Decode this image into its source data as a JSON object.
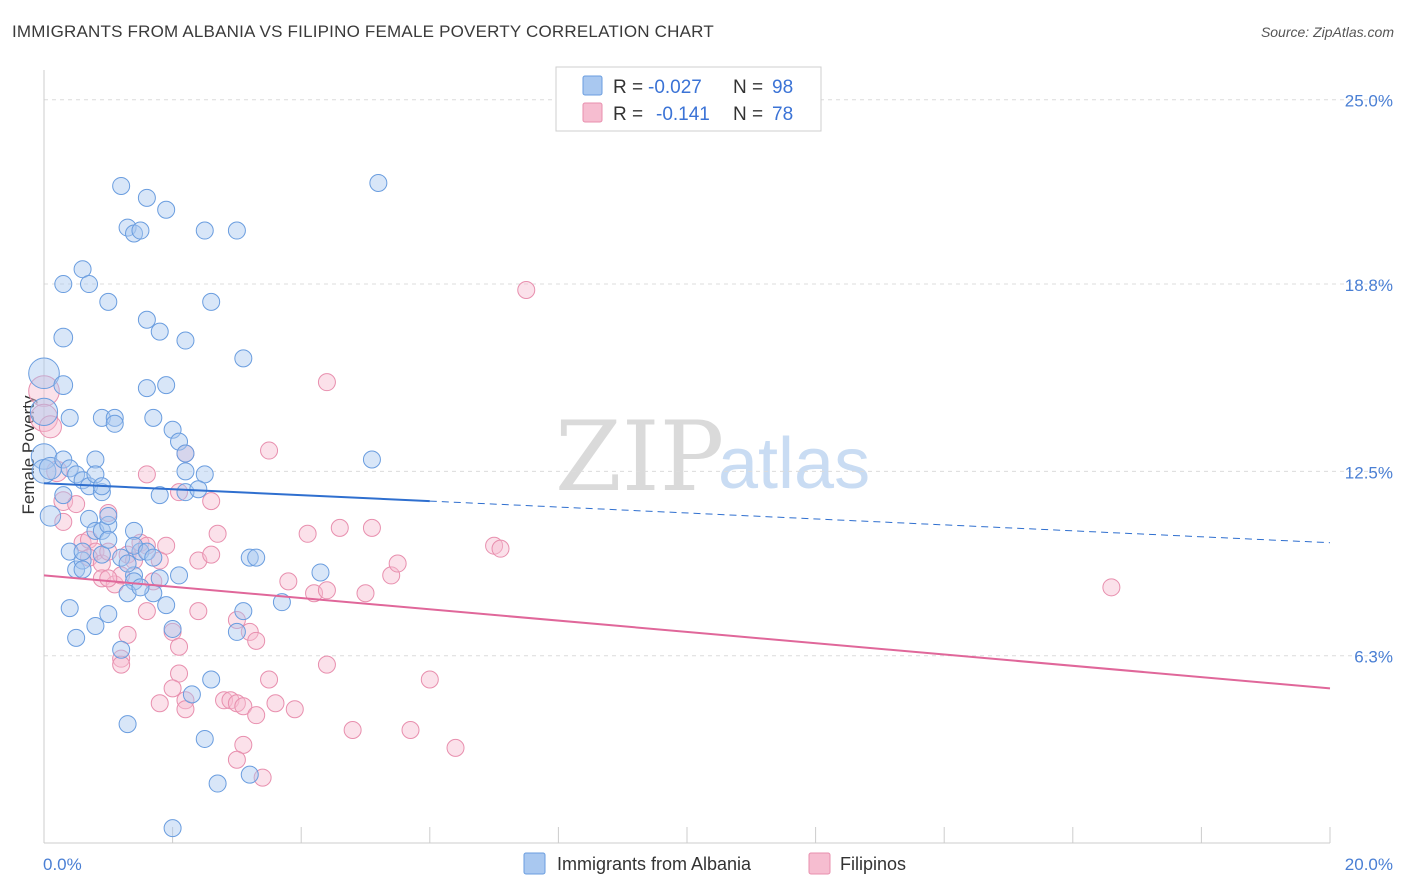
{
  "title": "IMMIGRANTS FROM ALBANIA VS FILIPINO FEMALE POVERTY CORRELATION CHART",
  "source": "Source: ZipAtlas.com",
  "watermark": {
    "part1": "ZIP",
    "part2": "atlas"
  },
  "colors": {
    "blue_fill": "#a9c8f0",
    "blue_stroke": "#6a9ddf",
    "blue_line": "#2f6fcf",
    "pink_fill": "#f6bdd0",
    "pink_stroke": "#e88fae",
    "pink_line": "#e0679a",
    "axis_text": "#4a7fd4",
    "grid": "#dcdcdc"
  },
  "legend": {
    "rows": [
      {
        "r_label": "R =",
        "r_value": "-0.027",
        "n_label": "N =",
        "n_value": "98",
        "series": "blue"
      },
      {
        "r_label": "R =",
        "r_value": "-0.141",
        "n_label": "N =",
        "n_value": "78",
        "series": "pink"
      }
    ]
  },
  "chart_data": {
    "type": "scatter",
    "title": "IMMIGRANTS FROM ALBANIA VS FILIPINO FEMALE POVERTY CORRELATION CHART",
    "xlabel": "",
    "ylabel": "Female Poverty",
    "xlim": [
      0,
      20
    ],
    "ylim": [
      0,
      26
    ],
    "x_tick_labels": [
      "0.0%",
      "20.0%"
    ],
    "y_ticks": [
      6.3,
      12.5,
      18.8,
      25.0
    ],
    "y_tick_labels": [
      "6.3%",
      "12.5%",
      "18.8%",
      "25.0%"
    ],
    "grid": true,
    "legend_position": "bottom-center",
    "series": [
      {
        "name": "Immigrants from Albania",
        "color": "blue",
        "trend": {
          "x_start": 0.0,
          "y_start": 12.1,
          "x_solid_end": 6.0,
          "y_solid_end": 11.5,
          "x_end": 20.0,
          "y_end": 10.1
        },
        "points": [
          [
            0.0,
            15.8,
            1.8
          ],
          [
            0.0,
            14.5,
            1.6
          ],
          [
            0.0,
            13.0,
            1.5
          ],
          [
            0.0,
            12.5,
            1.4
          ],
          [
            0.1,
            12.6,
            1.3
          ],
          [
            0.1,
            11.0,
            1.2
          ],
          [
            0.3,
            15.4,
            1.1
          ],
          [
            0.3,
            17.0,
            1.1
          ],
          [
            0.3,
            18.8,
            1.0
          ],
          [
            0.4,
            14.3,
            1.0
          ],
          [
            0.3,
            12.9,
            1.0
          ],
          [
            0.4,
            12.6,
            1.0
          ],
          [
            0.3,
            11.7,
            1.0
          ],
          [
            0.5,
            12.4,
            1.0
          ],
          [
            0.4,
            9.8,
            1.0
          ],
          [
            0.5,
            9.2,
            1.0
          ],
          [
            0.6,
            9.5,
            1.0
          ],
          [
            0.6,
            9.8,
            1.0
          ],
          [
            0.4,
            7.9,
            1.0
          ],
          [
            0.5,
            6.9,
            1.0
          ],
          [
            0.6,
            19.3,
            1.0
          ],
          [
            0.7,
            18.8,
            1.0
          ],
          [
            0.6,
            12.2,
            1.0
          ],
          [
            0.7,
            12.0,
            1.0
          ],
          [
            0.7,
            10.9,
            1.0
          ],
          [
            0.8,
            10.5,
            1.0
          ],
          [
            0.8,
            12.9,
            1.0
          ],
          [
            0.9,
            11.8,
            1.0
          ],
          [
            0.8,
            12.4,
            1.0
          ],
          [
            0.9,
            14.3,
            1.0
          ],
          [
            0.9,
            10.5,
            1.0
          ],
          [
            1.0,
            10.7,
            1.0
          ],
          [
            1.0,
            11.0,
            1.0
          ],
          [
            1.1,
            14.3,
            1.0
          ],
          [
            1.1,
            14.1,
            1.0
          ],
          [
            1.0,
            7.7,
            1.0
          ],
          [
            0.8,
            7.3,
            1.0
          ],
          [
            0.9,
            9.7,
            1.0
          ],
          [
            1.0,
            18.2,
            1.0
          ],
          [
            1.2,
            22.1,
            1.0
          ],
          [
            1.3,
            20.7,
            1.0
          ],
          [
            1.4,
            20.5,
            1.0
          ],
          [
            1.5,
            20.6,
            1.0
          ],
          [
            1.6,
            21.7,
            1.0
          ],
          [
            1.9,
            21.3,
            1.0
          ],
          [
            1.6,
            17.6,
            1.0
          ],
          [
            1.8,
            17.2,
            1.0
          ],
          [
            1.6,
            15.3,
            1.0
          ],
          [
            1.9,
            15.4,
            1.0
          ],
          [
            1.7,
            14.3,
            1.0
          ],
          [
            2.0,
            13.9,
            1.0
          ],
          [
            2.2,
            16.9,
            1.0
          ],
          [
            2.1,
            13.5,
            1.0
          ],
          [
            2.2,
            13.1,
            1.0
          ],
          [
            2.2,
            12.5,
            1.0
          ],
          [
            2.5,
            12.4,
            1.0
          ],
          [
            2.2,
            11.8,
            1.0
          ],
          [
            1.8,
            11.7,
            1.0
          ],
          [
            2.4,
            11.9,
            1.0
          ],
          [
            1.4,
            10.5,
            1.0
          ],
          [
            1.2,
            9.6,
            1.0
          ],
          [
            1.5,
            9.8,
            1.0
          ],
          [
            1.4,
            10.0,
            1.0
          ],
          [
            1.4,
            9.0,
            1.0
          ],
          [
            1.6,
            9.8,
            1.0
          ],
          [
            1.7,
            9.6,
            1.0
          ],
          [
            1.3,
            9.4,
            1.0
          ],
          [
            1.8,
            8.9,
            1.0
          ],
          [
            2.1,
            9.0,
            1.0
          ],
          [
            1.4,
            8.8,
            1.0
          ],
          [
            1.3,
            8.4,
            1.0
          ],
          [
            1.7,
            8.4,
            1.0
          ],
          [
            1.9,
            8.0,
            1.0
          ],
          [
            2.0,
            7.2,
            1.0
          ],
          [
            1.2,
            6.5,
            1.0
          ],
          [
            1.3,
            4.0,
            1.0
          ],
          [
            2.3,
            5.0,
            1.0
          ],
          [
            2.6,
            5.5,
            1.0
          ],
          [
            2.5,
            3.5,
            1.0
          ],
          [
            2.7,
            2.0,
            1.0
          ],
          [
            2.0,
            0.5,
            1.0
          ],
          [
            3.2,
            2.3,
            1.0
          ],
          [
            2.5,
            20.6,
            1.0
          ],
          [
            2.6,
            18.2,
            1.0
          ],
          [
            3.1,
            16.3,
            1.0
          ],
          [
            3.0,
            20.6,
            1.0
          ],
          [
            3.2,
            9.6,
            1.0
          ],
          [
            3.3,
            9.6,
            1.0
          ],
          [
            3.1,
            7.8,
            1.0
          ],
          [
            3.0,
            7.1,
            1.0
          ],
          [
            3.7,
            8.1,
            1.0
          ],
          [
            4.3,
            9.1,
            1.0
          ],
          [
            5.1,
            12.9,
            1.0
          ],
          [
            5.2,
            22.2,
            1.0
          ],
          [
            1.0,
            10.2,
            1.0
          ],
          [
            0.6,
            9.2,
            1.0
          ],
          [
            0.9,
            12.0,
            1.0
          ],
          [
            1.5,
            8.6,
            1.0
          ]
        ]
      },
      {
        "name": "Filipinos",
        "color": "pink",
        "trend": {
          "x_start": 0.0,
          "y_start": 9.0,
          "x_end": 20.0,
          "y_end": 5.2
        },
        "points": [
          [
            0.0,
            15.2,
            1.8
          ],
          [
            0.0,
            14.3,
            1.6
          ],
          [
            0.1,
            14.0,
            1.3
          ],
          [
            0.2,
            12.5,
            1.2
          ],
          [
            0.3,
            11.5,
            1.1
          ],
          [
            0.3,
            10.8,
            1.0
          ],
          [
            0.5,
            11.4,
            1.0
          ],
          [
            0.6,
            10.1,
            1.0
          ],
          [
            0.7,
            10.2,
            1.0
          ],
          [
            0.8,
            9.8,
            1.0
          ],
          [
            0.7,
            9.6,
            1.0
          ],
          [
            0.9,
            9.4,
            1.0
          ],
          [
            0.9,
            8.9,
            1.0
          ],
          [
            1.0,
            9.8,
            1.0
          ],
          [
            1.0,
            11.1,
            1.0
          ],
          [
            1.1,
            8.7,
            1.0
          ],
          [
            1.2,
            9.0,
            1.0
          ],
          [
            1.3,
            9.7,
            1.0
          ],
          [
            1.4,
            9.5,
            1.0
          ],
          [
            1.5,
            10.1,
            1.0
          ],
          [
            1.6,
            10.0,
            1.0
          ],
          [
            1.7,
            8.8,
            1.0
          ],
          [
            1.8,
            9.5,
            1.0
          ],
          [
            1.6,
            7.8,
            1.0
          ],
          [
            1.3,
            7.0,
            1.0
          ],
          [
            1.2,
            6.2,
            1.0
          ],
          [
            1.2,
            6.0,
            1.0
          ],
          [
            1.6,
            12.4,
            1.0
          ],
          [
            2.2,
            13.1,
            1.0
          ],
          [
            2.1,
            11.8,
            1.0
          ],
          [
            2.6,
            11.5,
            1.0
          ],
          [
            1.9,
            10.0,
            1.0
          ],
          [
            2.4,
            9.5,
            1.0
          ],
          [
            2.6,
            9.7,
            1.0
          ],
          [
            2.7,
            10.4,
            1.0
          ],
          [
            2.4,
            7.8,
            1.0
          ],
          [
            2.0,
            7.1,
            1.0
          ],
          [
            2.1,
            5.7,
            1.0
          ],
          [
            2.0,
            5.2,
            1.0
          ],
          [
            2.2,
            4.8,
            1.0
          ],
          [
            1.8,
            4.7,
            1.0
          ],
          [
            2.2,
            4.5,
            1.0
          ],
          [
            2.8,
            4.8,
            1.0
          ],
          [
            2.9,
            4.8,
            1.0
          ],
          [
            3.0,
            4.7,
            1.0
          ],
          [
            3.1,
            4.6,
            1.0
          ],
          [
            3.3,
            4.3,
            1.0
          ],
          [
            3.1,
            3.3,
            1.0
          ],
          [
            3.0,
            2.8,
            1.0
          ],
          [
            3.4,
            2.2,
            1.0
          ],
          [
            3.0,
            7.5,
            1.0
          ],
          [
            3.2,
            7.1,
            1.0
          ],
          [
            3.3,
            6.8,
            1.0
          ],
          [
            3.5,
            5.5,
            1.0
          ],
          [
            3.6,
            4.7,
            1.0
          ],
          [
            3.9,
            4.5,
            1.0
          ],
          [
            4.4,
            6.0,
            1.0
          ],
          [
            3.8,
            8.8,
            1.0
          ],
          [
            4.2,
            8.4,
            1.0
          ],
          [
            4.4,
            8.5,
            1.0
          ],
          [
            3.5,
            13.2,
            1.0
          ],
          [
            4.1,
            10.4,
            1.0
          ],
          [
            4.6,
            10.6,
            1.0
          ],
          [
            5.1,
            10.6,
            1.0
          ],
          [
            5.0,
            8.4,
            1.0
          ],
          [
            5.4,
            9.0,
            1.0
          ],
          [
            5.5,
            9.4,
            1.0
          ],
          [
            4.4,
            15.5,
            1.0
          ],
          [
            4.8,
            3.8,
            1.0
          ],
          [
            5.7,
            3.8,
            1.0
          ],
          [
            6.0,
            5.5,
            1.0
          ],
          [
            6.4,
            3.2,
            1.0
          ],
          [
            7.0,
            10.0,
            1.0
          ],
          [
            7.1,
            9.9,
            1.0
          ],
          [
            7.5,
            18.6,
            1.0
          ],
          [
            16.6,
            8.6,
            1.0
          ],
          [
            2.1,
            6.6,
            1.0
          ],
          [
            1.0,
            8.9,
            1.0
          ]
        ]
      }
    ]
  },
  "bottom_legend": {
    "items": [
      {
        "label": "Immigrants from Albania",
        "series": "blue"
      },
      {
        "label": "Filipinos",
        "series": "pink"
      }
    ]
  }
}
